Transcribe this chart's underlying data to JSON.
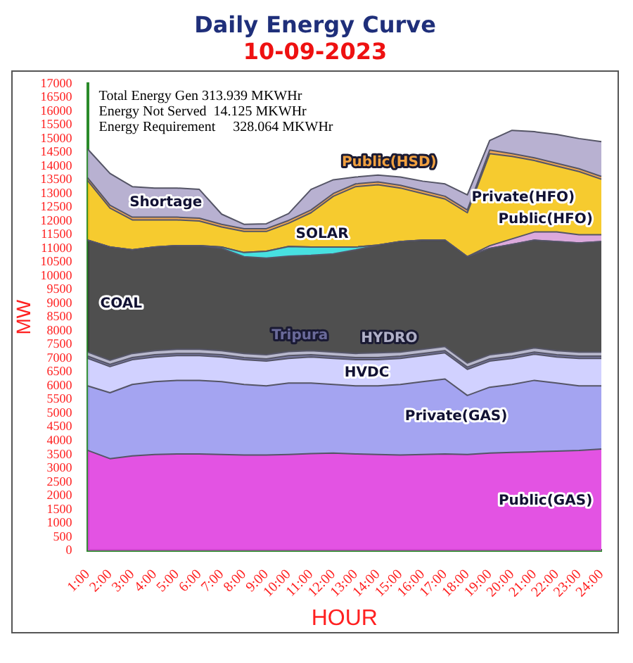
{
  "chart_data": {
    "type": "area",
    "title": "Daily Energy Curve",
    "subtitle": "10-09-2023",
    "xlabel": "HOUR",
    "ylabel": "MW",
    "annotations": [
      "Total Energy Gen 313.939 MKWHr",
      "Energy Not Served  14.125 MKWHr",
      "Energy Requirement     328.064 MKWHr"
    ],
    "categories": [
      "1:00",
      "2:00",
      "3:00",
      "4:00",
      "5:00",
      "6:00",
      "7:00",
      "8:00",
      "9:00",
      "10:00",
      "11:00",
      "12:00",
      "13:00",
      "14:00",
      "15:00",
      "16:00",
      "17:00",
      "18:00",
      "19:00",
      "20:00",
      "21:00",
      "22:00",
      "23:00",
      "24:00"
    ],
    "stacked": true,
    "ylim": [
      0,
      17000
    ],
    "yticks": [
      0,
      500,
      1000,
      1500,
      2000,
      2500,
      3000,
      3500,
      4000,
      4500,
      5000,
      5500,
      6000,
      6500,
      7000,
      7500,
      8000,
      8500,
      9000,
      9500,
      10000,
      10500,
      11000,
      11500,
      12000,
      12500,
      13000,
      13500,
      14000,
      14500,
      15000,
      15500,
      16000,
      16500,
      17000
    ],
    "grid": false,
    "legend": false,
    "marker": "none",
    "series": [
      {
        "name": "Public(GAS)",
        "color": "#e040e0",
        "values": [
          3650,
          3350,
          3450,
          3500,
          3520,
          3520,
          3500,
          3480,
          3480,
          3500,
          3530,
          3550,
          3520,
          3500,
          3480,
          3500,
          3520,
          3500,
          3550,
          3580,
          3600,
          3620,
          3650,
          3700
        ]
      },
      {
        "name": "Private(GAS)",
        "color": "#9a9af0",
        "values": [
          2350,
          2400,
          2600,
          2650,
          2680,
          2680,
          2650,
          2570,
          2520,
          2600,
          2570,
          2500,
          2480,
          2500,
          2570,
          2650,
          2730,
          2150,
          2400,
          2470,
          2600,
          2480,
          2350,
          2300
        ]
      },
      {
        "name": "HVDC",
        "color": "#ccccff",
        "values": [
          1000,
          950,
          900,
          900,
          900,
          900,
          900,
          900,
          900,
          900,
          950,
          950,
          950,
          950,
          950,
          950,
          950,
          950,
          950,
          950,
          950,
          950,
          1000,
          1000
        ]
      },
      {
        "name": "Tripura",
        "color": "#6a6a9a",
        "values": [
          80,
          80,
          80,
          80,
          80,
          80,
          80,
          80,
          80,
          100,
          80,
          80,
          80,
          80,
          80,
          80,
          80,
          80,
          80,
          80,
          80,
          80,
          80,
          80
        ]
      },
      {
        "name": "HYDRO",
        "color": "#b0b0c8",
        "values": [
          150,
          150,
          150,
          150,
          150,
          150,
          150,
          150,
          150,
          150,
          150,
          150,
          150,
          170,
          150,
          150,
          150,
          150,
          150,
          150,
          150,
          150,
          150,
          150
        ]
      },
      {
        "name": "COAL",
        "color": "#3c3c3c",
        "values": [
          4070,
          4120,
          3770,
          3770,
          3770,
          3770,
          3720,
          3520,
          3520,
          3470,
          3470,
          3570,
          3770,
          3920,
          4020,
          3970,
          3870,
          3870,
          3870,
          3920,
          3920,
          3970,
          3970,
          4020
        ]
      },
      {
        "name": "SOLAR",
        "color": "#33dddd",
        "values": [
          0,
          0,
          0,
          0,
          0,
          0,
          50,
          150,
          250,
          350,
          300,
          250,
          100,
          0,
          0,
          0,
          0,
          0,
          0,
          0,
          0,
          0,
          0,
          0
        ]
      },
      {
        "name": "Public(HFO)",
        "color": "#d8a0d8",
        "values": [
          0,
          0,
          0,
          0,
          0,
          0,
          0,
          0,
          0,
          0,
          0,
          0,
          0,
          0,
          0,
          0,
          0,
          0,
          100,
          200,
          300,
          350,
          300,
          250
        ]
      },
      {
        "name": "Private(HFO)",
        "color": "#f5c518",
        "values": [
          2170,
          1420,
          1090,
          990,
          940,
          900,
          730,
          770,
          720,
          850,
          1250,
          1850,
          2200,
          2200,
          1950,
          1700,
          1500,
          1600,
          3350,
          3000,
          2600,
          2400,
          2300,
          2020
        ]
      },
      {
        "name": "Public(HSD)",
        "color": "#f0a040",
        "values": [
          100,
          100,
          100,
          100,
          100,
          100,
          100,
          100,
          100,
          100,
          100,
          100,
          100,
          100,
          100,
          100,
          100,
          100,
          130,
          100,
          100,
          100,
          100,
          100
        ]
      },
      {
        "name": "Shortage",
        "color": "#b0a8cc",
        "values": [
          1050,
          1160,
          1110,
          1060,
          1060,
          1050,
          370,
          160,
          180,
          250,
          750,
          500,
          250,
          250,
          300,
          350,
          450,
          550,
          350,
          850,
          950,
          1050,
          1100,
          1270
        ]
      }
    ]
  }
}
